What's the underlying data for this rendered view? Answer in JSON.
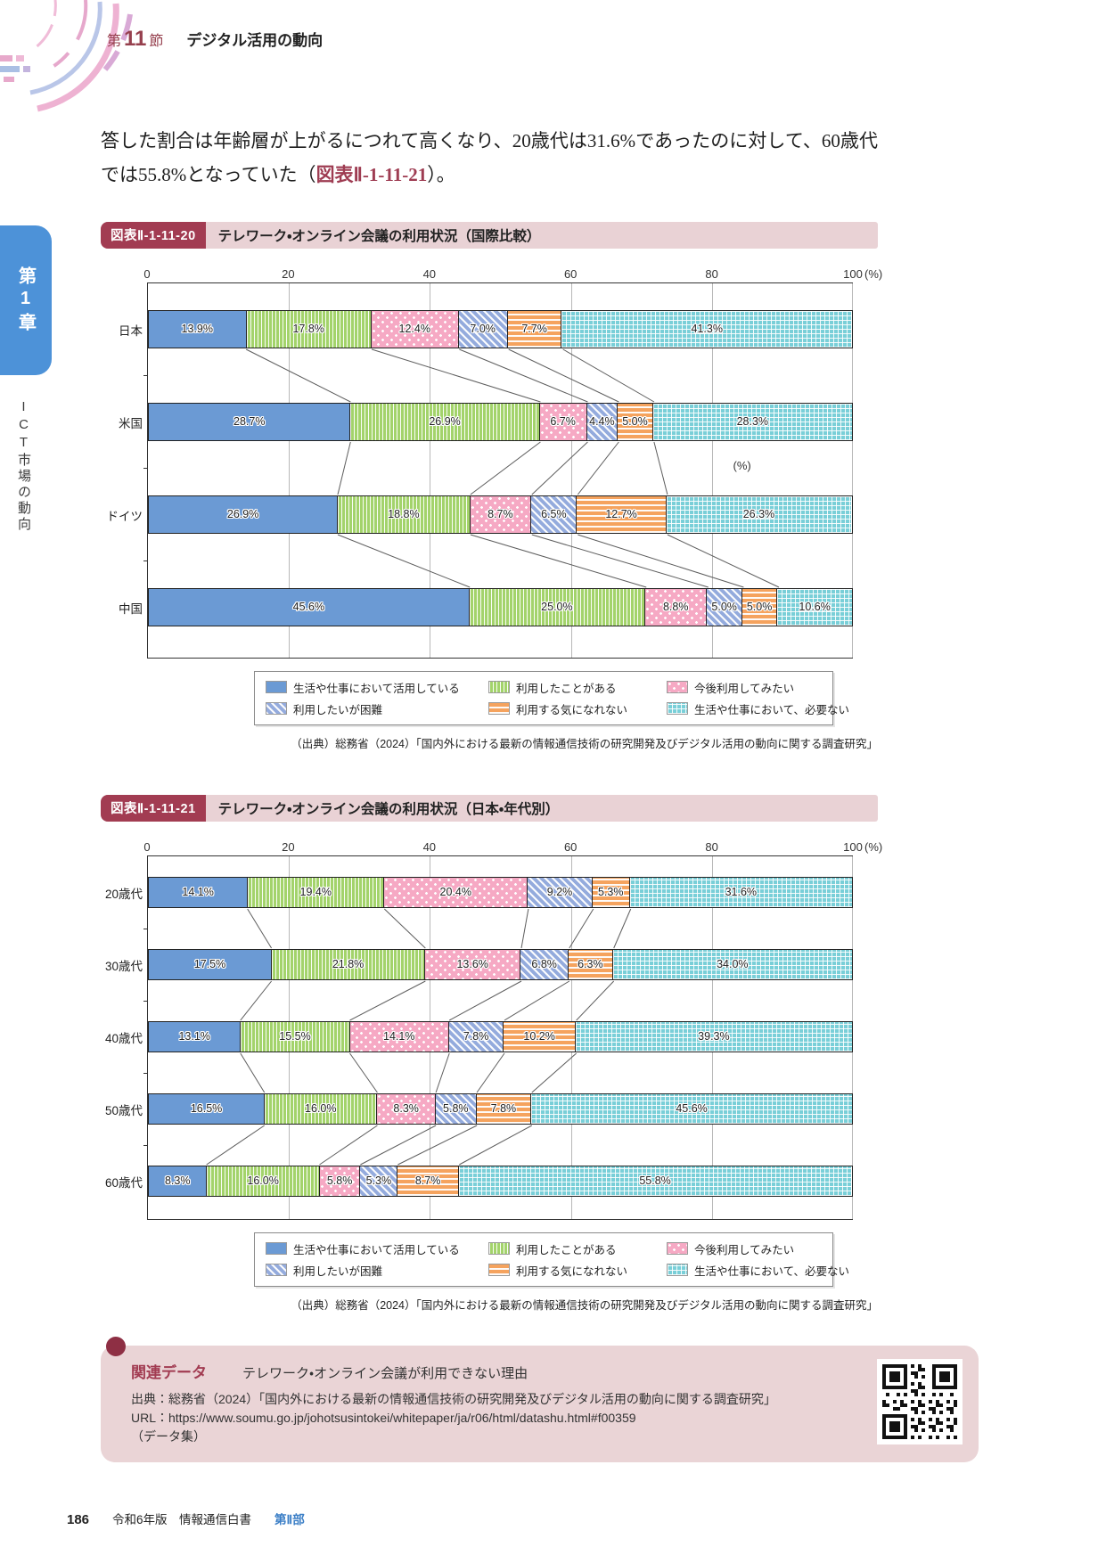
{
  "header": {
    "section_prefix": "第",
    "section_number": "11",
    "section_suffix": "節",
    "section_title": "デジタル活用の動向"
  },
  "sidebar": {
    "chapter": "第1章",
    "chapter_title": "ICT市場の動向"
  },
  "intro": {
    "text_before_link": "答した割合は年齢層が上がるにつれて高くなり、20歳代は31.6%であったのに対して、60歳代では55.8%となっていた（",
    "link": "図表Ⅱ-1-11-21",
    "text_after_link": "）。"
  },
  "legend": {
    "items": [
      {
        "label": "生活や仕事において活用している",
        "pattern": "solid-blue"
      },
      {
        "label": "利用したことがある",
        "pattern": "green-vertical-stripes"
      },
      {
        "label": "今後利用してみたい",
        "pattern": "pink-dots"
      },
      {
        "label": "利用したいが困難",
        "pattern": "blue-diagonal-stripes"
      },
      {
        "label": "利用する気になれない",
        "pattern": "orange-horizontal-stripes"
      },
      {
        "label": "生活や仕事において、必要ない",
        "pattern": "cyan-grid"
      }
    ]
  },
  "chart_data": [
    {
      "type": "bar",
      "stacked": true,
      "orientation": "horizontal",
      "fig_label": "図表Ⅱ-1-11-20",
      "title": "テレワーク・オンライン会議の利用状況（国際比較）",
      "categories": [
        "日本",
        "米国",
        "ドイツ",
        "中国"
      ],
      "series": [
        {
          "name": "生活や仕事において活用している",
          "values": [
            13.9,
            28.7,
            26.9,
            45.6
          ]
        },
        {
          "name": "利用したことがある",
          "values": [
            17.8,
            26.9,
            18.8,
            25.0
          ]
        },
        {
          "name": "今後利用してみたい",
          "values": [
            12.4,
            6.7,
            8.7,
            8.8
          ]
        },
        {
          "name": "利用したいが困難",
          "values": [
            7.0,
            4.4,
            6.5,
            5.0
          ]
        },
        {
          "name": "利用する気になれない",
          "values": [
            7.7,
            5.0,
            12.7,
            5.0
          ]
        },
        {
          "name": "生活や仕事において、必要ない",
          "values": [
            41.3,
            28.3,
            26.3,
            10.6
          ]
        }
      ],
      "x_ticks": [
        "0",
        "20",
        "40",
        "60",
        "80",
        "100"
      ],
      "x_unit": "(%)",
      "xlim": [
        0,
        100
      ],
      "inner_unit_label": "(%)",
      "grid": true,
      "legend_position": "bottom",
      "source": "（出典）総務省（2024）「国内外における最新の情報通信技術の研究開発及びデジタル活用の動向に関する調査研究」"
    },
    {
      "type": "bar",
      "stacked": true,
      "orientation": "horizontal",
      "fig_label": "図表Ⅱ-1-11-21",
      "title": "テレワーク・オンライン会議の利用状況（日本・年代別）",
      "categories": [
        "20歳代",
        "30歳代",
        "40歳代",
        "50歳代",
        "60歳代"
      ],
      "series": [
        {
          "name": "生活や仕事において活用している",
          "values": [
            14.1,
            17.5,
            13.1,
            16.5,
            8.3
          ]
        },
        {
          "name": "利用したことがある",
          "values": [
            19.4,
            21.8,
            15.5,
            16.0,
            16.0
          ]
        },
        {
          "name": "今後利用してみたい",
          "values": [
            20.4,
            13.6,
            14.1,
            8.3,
            5.8
          ]
        },
        {
          "name": "利用したいが困難",
          "values": [
            9.2,
            6.8,
            7.8,
            5.8,
            5.3
          ]
        },
        {
          "name": "利用する気になれない",
          "values": [
            5.3,
            6.3,
            10.2,
            7.8,
            8.7
          ]
        },
        {
          "name": "生活や仕事において、必要ない",
          "values": [
            31.6,
            34.0,
            39.3,
            45.6,
            55.8
          ]
        }
      ],
      "x_ticks": [
        "0",
        "20",
        "40",
        "60",
        "80",
        "100"
      ],
      "x_unit": "(%)",
      "xlim": [
        0,
        100
      ],
      "grid": true,
      "legend_position": "bottom",
      "source": "（出典）総務省（2024）「国内外における最新の情報通信技術の研究開発及びデジタル活用の動向に関する調査研究」"
    }
  ],
  "related_data": {
    "label": "関連データ",
    "title": "テレワーク・オンライン会議が利用できない理由",
    "source": "出典：総務省（2024）「国内外における最新の情報通信技術の研究開発及びデジタル活用の動向に関する調査研究」",
    "url": "URL：https://www.soumu.go.jp/johotsusintokei/whitepaper/ja/r06/html/datashu.html#f00359",
    "note": "（データ集）"
  },
  "footer": {
    "page_number": "186",
    "edition": "令和6年版　情報通信白書",
    "part": "第Ⅱ部"
  },
  "colors": {
    "accent_maroon": "#a23c52",
    "figure_bar_bg": "#e9d2d5",
    "chapter_tab_blue": "#4d92d8",
    "footer_part_blue": "#3a7ec6",
    "series": [
      "#6b9ad4",
      "#a3d36b",
      "#f6a9c4",
      "#94abdd",
      "#f5a35e",
      "#79cfd8"
    ]
  }
}
